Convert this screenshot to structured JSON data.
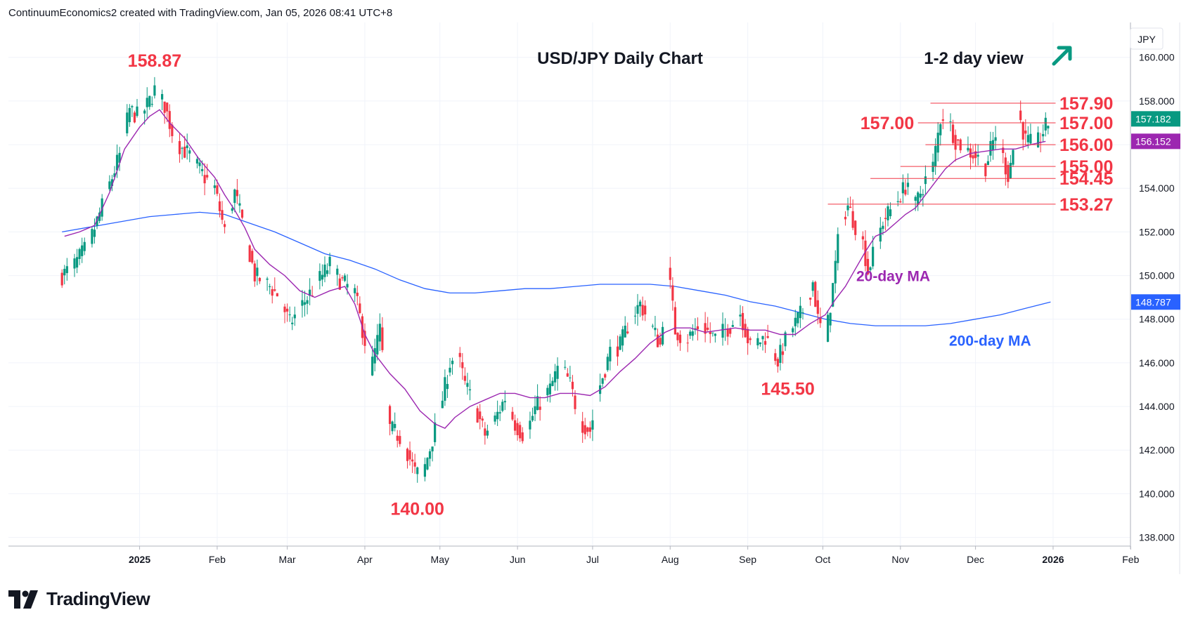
{
  "attribution": "ContinuumEconomics2 created with TradingView.com, Jan 05, 2026 08:41 UTC+8",
  "brand": "TradingView",
  "chart_data": {
    "type": "candlestick",
    "title": "USD/JPY Daily Chart",
    "subtitle": "1-2 day view",
    "currency": "JPY",
    "y_range": [
      137.6,
      161.6
    ],
    "y_ticks": [
      "138.000",
      "140.000",
      "142.000",
      "144.000",
      "146.000",
      "148.000",
      "150.000",
      "152.000",
      "154.000",
      "156.000",
      "158.000",
      "160.000"
    ],
    "x_ticks": [
      {
        "label": "2025",
        "day": 26,
        "bold": true
      },
      {
        "label": "Feb",
        "day": 57,
        "bold": false
      },
      {
        "label": "Mar",
        "day": 85,
        "bold": false
      },
      {
        "label": "Apr",
        "day": 116,
        "bold": false
      },
      {
        "label": "May",
        "day": 146,
        "bold": false
      },
      {
        "label": "Jun",
        "day": 177,
        "bold": false
      },
      {
        "label": "Jul",
        "day": 207,
        "bold": false
      },
      {
        "label": "Aug",
        "day": 238,
        "bold": false
      },
      {
        "label": "Sep",
        "day": 269,
        "bold": false
      },
      {
        "label": "Oct",
        "day": 299,
        "bold": false
      },
      {
        "label": "Nov",
        "day": 330,
        "bold": false
      },
      {
        "label": "Dec",
        "day": 360,
        "bold": false
      },
      {
        "label": "2026",
        "day": 391,
        "bold": true
      },
      {
        "label": "Feb",
        "day": 422,
        "bold": false
      }
    ],
    "last_price": "157.182",
    "ma20_value": "156.152",
    "ma200_value": "148.787",
    "colors": {
      "up": "#089981",
      "down": "#f23645",
      "ma20": "#9c27b0",
      "ma200": "#2962ff",
      "level": "#f23645",
      "arrow": "#089981"
    },
    "level_lines": [
      {
        "value": 157.9,
        "label": "157.90",
        "start_day": 342
      },
      {
        "value": 157.0,
        "label": "157.00",
        "start_day": 337
      },
      {
        "value": 156.0,
        "label": "156.00",
        "start_day": 340
      },
      {
        "value": 155.0,
        "label": "155.00",
        "start_day": 330
      },
      {
        "value": 154.45,
        "label": "154.45",
        "start_day": 318
      },
      {
        "value": 153.27,
        "label": "153.27",
        "start_day": 301
      }
    ],
    "extreme_labels": [
      {
        "text": "158.87",
        "day": 32,
        "value": 158.87
      },
      {
        "text": "140.00",
        "day": 137,
        "value": 140.0
      },
      {
        "text": "145.50",
        "day": 285,
        "value": 145.5
      }
    ],
    "ma_labels": {
      "ma20": "20-day MA",
      "ma200": "200-day MA"
    },
    "waypoints": [
      [
        -5,
        150.0
      ],
      [
        0,
        150.5
      ],
      [
        6,
        151.5
      ],
      [
        12,
        153.5
      ],
      [
        18,
        155.5
      ],
      [
        22,
        157.6
      ],
      [
        26,
        157.2
      ],
      [
        30,
        158.0
      ],
      [
        32,
        158.5
      ],
      [
        36,
        157.8
      ],
      [
        40,
        156.2
      ],
      [
        46,
        155.5
      ],
      [
        52,
        154.5
      ],
      [
        56,
        154.0
      ],
      [
        60,
        152.0
      ],
      [
        64,
        153.8
      ],
      [
        68,
        152.0
      ],
      [
        72,
        150.0
      ],
      [
        78,
        149.5
      ],
      [
        82,
        149.0
      ],
      [
        86,
        147.8
      ],
      [
        90,
        148.5
      ],
      [
        96,
        149.5
      ],
      [
        102,
        150.5
      ],
      [
        106,
        149.8
      ],
      [
        112,
        149.2
      ],
      [
        116,
        147.0
      ],
      [
        118,
        145.5
      ],
      [
        122,
        147.5
      ],
      [
        126,
        143.0
      ],
      [
        131,
        142.5
      ],
      [
        136,
        141.0
      ],
      [
        139,
        140.8
      ],
      [
        143,
        142.5
      ],
      [
        146,
        143.8
      ],
      [
        150,
        146.0
      ],
      [
        153,
        146.4
      ],
      [
        156,
        145.0
      ],
      [
        160,
        144.0
      ],
      [
        164,
        142.7
      ],
      [
        168,
        143.4
      ],
      [
        172,
        144.4
      ],
      [
        176,
        143.2
      ],
      [
        180,
        142.6
      ],
      [
        184,
        143.9
      ],
      [
        190,
        144.8
      ],
      [
        194,
        146.0
      ],
      [
        198,
        145.0
      ],
      [
        202,
        143.3
      ],
      [
        206,
        142.9
      ],
      [
        210,
        145.0
      ],
      [
        214,
        146.5
      ],
      [
        218,
        146.8
      ],
      [
        222,
        148.0
      ],
      [
        226,
        148.7
      ],
      [
        230,
        147.8
      ],
      [
        234,
        146.8
      ],
      [
        237,
        150.5
      ],
      [
        240,
        147.5
      ],
      [
        244,
        147.0
      ],
      [
        250,
        147.8
      ],
      [
        256,
        147.1
      ],
      [
        262,
        147.7
      ],
      [
        266,
        148.3
      ],
      [
        270,
        146.7
      ],
      [
        276,
        147.2
      ],
      [
        281,
        146.1
      ],
      [
        285,
        147.3
      ],
      [
        288,
        147.8
      ],
      [
        292,
        148.6
      ],
      [
        295,
        149.7
      ],
      [
        297,
        148.0
      ],
      [
        300,
        147.0
      ],
      [
        303,
        149.5
      ],
      [
        306,
        152.5
      ],
      [
        309,
        153.2
      ],
      [
        312,
        152.3
      ],
      [
        315,
        151.5
      ],
      [
        317,
        150.2
      ],
      [
        320,
        151.3
      ],
      [
        323,
        152.5
      ],
      [
        326,
        153.0
      ],
      [
        329,
        153.5
      ],
      [
        333,
        154.3
      ],
      [
        336,
        153.2
      ],
      [
        340,
        154.4
      ],
      [
        343,
        155.0
      ],
      [
        346,
        157.2
      ],
      [
        348,
        157.5
      ],
      [
        352,
        156.2
      ],
      [
        356,
        155.8
      ],
      [
        360,
        155.5
      ],
      [
        364,
        155.0
      ],
      [
        368,
        156.5
      ],
      [
        371,
        155.4
      ],
      [
        373,
        154.6
      ],
      [
        375,
        155.8
      ],
      [
        377,
        157.5
      ],
      [
        380,
        156.2
      ],
      [
        384,
        155.9
      ],
      [
        387,
        156.6
      ],
      [
        390,
        157.2
      ]
    ],
    "ma20": [
      [
        -4,
        151.8
      ],
      [
        2,
        152.0
      ],
      [
        8,
        152.3
      ],
      [
        14,
        153.8
      ],
      [
        20,
        155.8
      ],
      [
        26,
        156.8
      ],
      [
        30,
        157.3
      ],
      [
        34,
        157.6
      ],
      [
        38,
        157.0
      ],
      [
        44,
        156.3
      ],
      [
        50,
        155.3
      ],
      [
        56,
        154.5
      ],
      [
        60,
        153.7
      ],
      [
        64,
        153.0
      ],
      [
        68,
        152.2
      ],
      [
        72,
        151.2
      ],
      [
        78,
        150.5
      ],
      [
        84,
        150.0
      ],
      [
        90,
        149.3
      ],
      [
        96,
        149.0
      ],
      [
        102,
        149.3
      ],
      [
        108,
        149.5
      ],
      [
        112,
        148.7
      ],
      [
        116,
        147.3
      ],
      [
        120,
        146.4
      ],
      [
        126,
        145.5
      ],
      [
        132,
        144.8
      ],
      [
        138,
        143.8
      ],
      [
        144,
        143.2
      ],
      [
        148,
        143.0
      ],
      [
        152,
        143.5
      ],
      [
        158,
        144.0
      ],
      [
        164,
        144.3
      ],
      [
        170,
        144.6
      ],
      [
        176,
        144.6
      ],
      [
        182,
        144.4
      ],
      [
        188,
        144.4
      ],
      [
        194,
        144.6
      ],
      [
        200,
        144.6
      ],
      [
        206,
        144.5
      ],
      [
        212,
        144.9
      ],
      [
        218,
        145.6
      ],
      [
        224,
        146.2
      ],
      [
        230,
        146.9
      ],
      [
        236,
        147.4
      ],
      [
        240,
        147.6
      ],
      [
        246,
        147.6
      ],
      [
        252,
        147.4
      ],
      [
        258,
        147.5
      ],
      [
        264,
        147.6
      ],
      [
        270,
        147.5
      ],
      [
        276,
        147.5
      ],
      [
        282,
        147.3
      ],
      [
        288,
        147.3
      ],
      [
        294,
        147.8
      ],
      [
        300,
        148.2
      ],
      [
        304,
        148.9
      ],
      [
        308,
        149.5
      ],
      [
        312,
        150.3
      ],
      [
        316,
        151.1
      ],
      [
        320,
        151.8
      ],
      [
        324,
        152.0
      ],
      [
        328,
        152.4
      ],
      [
        332,
        152.8
      ],
      [
        336,
        153.1
      ],
      [
        340,
        153.7
      ],
      [
        344,
        154.3
      ],
      [
        348,
        154.9
      ],
      [
        352,
        155.3
      ],
      [
        358,
        155.6
      ],
      [
        364,
        155.7
      ],
      [
        370,
        155.8
      ],
      [
        376,
        155.8
      ],
      [
        382,
        156.0
      ],
      [
        388,
        156.15
      ]
    ],
    "ma200": [
      [
        -5,
        152.0
      ],
      [
        10,
        152.3
      ],
      [
        20,
        152.5
      ],
      [
        30,
        152.7
      ],
      [
        40,
        152.8
      ],
      [
        50,
        152.9
      ],
      [
        60,
        152.8
      ],
      [
        70,
        152.4
      ],
      [
        80,
        152.0
      ],
      [
        90,
        151.5
      ],
      [
        100,
        151.0
      ],
      [
        110,
        150.7
      ],
      [
        120,
        150.3
      ],
      [
        130,
        149.8
      ],
      [
        140,
        149.4
      ],
      [
        150,
        149.2
      ],
      [
        160,
        149.2
      ],
      [
        170,
        149.3
      ],
      [
        180,
        149.4
      ],
      [
        190,
        149.4
      ],
      [
        200,
        149.5
      ],
      [
        210,
        149.6
      ],
      [
        220,
        149.6
      ],
      [
        230,
        149.6
      ],
      [
        240,
        149.5
      ],
      [
        250,
        149.3
      ],
      [
        260,
        149.1
      ],
      [
        270,
        148.8
      ],
      [
        280,
        148.6
      ],
      [
        290,
        148.3
      ],
      [
        300,
        148.0
      ],
      [
        310,
        147.8
      ],
      [
        320,
        147.7
      ],
      [
        330,
        147.7
      ],
      [
        340,
        147.7
      ],
      [
        350,
        147.8
      ],
      [
        360,
        148.0
      ],
      [
        370,
        148.2
      ],
      [
        380,
        148.5
      ],
      [
        390,
        148.787
      ]
    ]
  }
}
